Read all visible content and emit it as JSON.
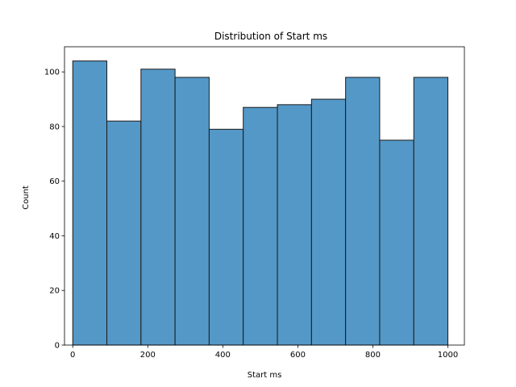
{
  "chart_data": {
    "type": "bar",
    "title": "Distribution of Start ms",
    "xlabel": "Start ms",
    "ylabel": "Count",
    "bin_edges": [
      0,
      90.9,
      181.8,
      272.7,
      363.6,
      454.5,
      545.5,
      636.4,
      727.3,
      818.2,
      909.1,
      1000
    ],
    "values": [
      104,
      82,
      101,
      98,
      79,
      87,
      88,
      90,
      98,
      75,
      98
    ],
    "xlim": [
      -22,
      1044
    ],
    "ylim": [
      0,
      109.2
    ],
    "x_ticks": [
      0,
      200,
      400,
      600,
      800,
      1000
    ],
    "y_ticks": [
      0,
      20,
      40,
      60,
      80,
      100
    ],
    "bar_color": "#5498c7",
    "edge_color": "#1a1a1a",
    "grid": false
  }
}
